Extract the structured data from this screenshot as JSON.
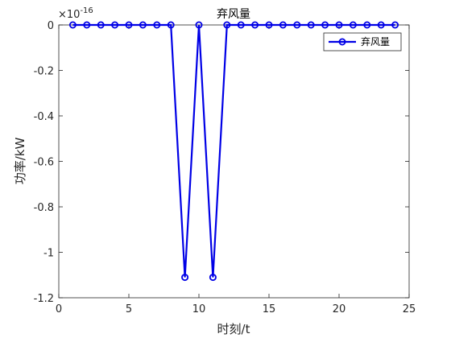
{
  "chart_data": {
    "type": "line",
    "title": "弃风量",
    "xlabel": "时刻/t",
    "ylabel": "功率/kW",
    "exponent_label": "×10",
    "exponent_power": "-16",
    "xlim": [
      0,
      25
    ],
    "ylim": [
      -1.2,
      0
    ],
    "x_ticks": [
      0,
      5,
      10,
      15,
      20,
      25
    ],
    "x_tick_labels": [
      "0",
      "5",
      "10",
      "15",
      "20",
      "25"
    ],
    "y_ticks": [
      0,
      -0.2,
      -0.4,
      -0.6,
      -0.8,
      -1,
      -1.2
    ],
    "y_tick_labels": [
      "0",
      "-0.2",
      "-0.4",
      "-0.6",
      "-0.8",
      "-1",
      "-1.2"
    ],
    "grid": false,
    "legend_position": "top-right",
    "series": [
      {
        "name": "弃风量",
        "color": "#0000e6",
        "marker": "circle",
        "x": [
          1,
          2,
          3,
          4,
          5,
          6,
          7,
          8,
          9,
          10,
          11,
          12,
          13,
          14,
          15,
          16,
          17,
          18,
          19,
          20,
          21,
          22,
          23,
          24
        ],
        "y": [
          0,
          0,
          0,
          0,
          0,
          0,
          0,
          0,
          -1.11,
          0,
          -1.11,
          0,
          0,
          0,
          0,
          0,
          0,
          0,
          0,
          0,
          0,
          0,
          0,
          0
        ]
      }
    ]
  }
}
